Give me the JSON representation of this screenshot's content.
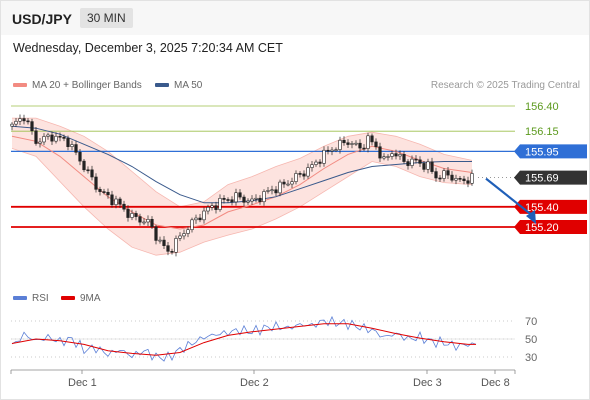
{
  "header": {
    "symbol": "USD/JPY",
    "timeframe": "30 MIN",
    "datetime": "Wednesday, December 3, 2025 7:20:34 AM CET"
  },
  "legend": {
    "bb_label": "MA 20 + Bollinger Bands",
    "ma50_label": "MA 50",
    "bb_color": "#f28b82",
    "ma50_color": "#3a5a8c",
    "copyright": "Research © 2025 Trading Central"
  },
  "rsi_legend": {
    "rsi_label": "RSI",
    "ma9_label": "9MA",
    "rsi_color": "#5b7fd6",
    "ma9_color": "#e00000"
  },
  "colors": {
    "resistance": "#9cbf4a",
    "resistance_text": "#5c9a1e",
    "support": "#e00000",
    "pivot": "#2f6fd6",
    "current": "#333333",
    "candle": "#222222",
    "bb_fill": "#fde0dc",
    "arrow": "#1f5fb8"
  },
  "chart_data": [
    {
      "type": "line",
      "title": "USD/JPY",
      "subtitle": "30 MIN",
      "x_labels": [
        "Dec 1",
        "Dec 2",
        "Dec 3",
        "Dec 8"
      ],
      "ylim": [
        154.85,
        156.55
      ],
      "levels": [
        {
          "value": 156.4,
          "label": "156.40",
          "kind": "resistance"
        },
        {
          "value": 156.15,
          "label": "156.15",
          "kind": "resistance"
        },
        {
          "value": 155.95,
          "label": "155.95",
          "kind": "pivot"
        },
        {
          "value": 155.69,
          "label": "155.69",
          "kind": "current"
        },
        {
          "value": 155.4,
          "label": "155.40",
          "kind": "support"
        },
        {
          "value": 155.2,
          "label": "155.20",
          "kind": "support"
        }
      ],
      "price_path": [
        [
          0,
          156.2
        ],
        [
          3,
          156.3
        ],
        [
          6,
          156.05
        ],
        [
          10,
          156.1
        ],
        [
          14,
          156.05
        ],
        [
          18,
          155.8
        ],
        [
          22,
          155.55
        ],
        [
          26,
          155.45
        ],
        [
          30,
          155.3
        ],
        [
          34,
          155.25
        ],
        [
          37,
          155.05
        ],
        [
          39,
          154.95
        ],
        [
          41,
          155.05
        ],
        [
          44,
          155.2
        ],
        [
          48,
          155.35
        ],
        [
          52,
          155.45
        ],
        [
          56,
          155.5
        ],
        [
          60,
          155.45
        ],
        [
          64,
          155.55
        ],
        [
          68,
          155.62
        ],
        [
          72,
          155.72
        ],
        [
          75,
          155.8
        ],
        [
          78,
          155.92
        ],
        [
          81,
          156.0
        ],
        [
          84,
          156.05
        ],
        [
          87,
          155.98
        ],
        [
          89,
          156.07
        ],
        [
          91,
          156.0
        ],
        [
          93,
          155.85
        ],
        [
          95,
          155.95
        ],
        [
          98,
          155.85
        ],
        [
          101,
          155.85
        ],
        [
          104,
          155.8
        ],
        [
          106,
          155.7
        ],
        [
          109,
          155.72
        ],
        [
          112,
          155.65
        ],
        [
          115,
          155.69
        ]
      ],
      "ma20": [
        [
          0,
          156.1
        ],
        [
          6,
          156.05
        ],
        [
          12,
          155.9
        ],
        [
          18,
          155.7
        ],
        [
          24,
          155.5
        ],
        [
          30,
          155.35
        ],
        [
          36,
          155.22
        ],
        [
          42,
          155.18
        ],
        [
          48,
          155.22
        ],
        [
          54,
          155.35
        ],
        [
          60,
          155.42
        ],
        [
          66,
          155.5
        ],
        [
          72,
          155.62
        ],
        [
          78,
          155.78
        ],
        [
          84,
          155.92
        ],
        [
          90,
          156.0
        ],
        [
          96,
          155.95
        ],
        [
          102,
          155.86
        ],
        [
          108,
          155.78
        ],
        [
          115,
          155.74
        ]
      ],
      "bb_upper": [
        [
          0,
          156.28
        ],
        [
          6,
          156.28
        ],
        [
          12,
          156.2
        ],
        [
          18,
          156.1
        ],
        [
          24,
          155.95
        ],
        [
          30,
          155.75
        ],
        [
          36,
          155.55
        ],
        [
          42,
          155.4
        ],
        [
          48,
          155.45
        ],
        [
          54,
          155.62
        ],
        [
          60,
          155.7
        ],
        [
          66,
          155.8
        ],
        [
          72,
          155.88
        ],
        [
          78,
          156.0
        ],
        [
          84,
          156.1
        ],
        [
          90,
          156.14
        ],
        [
          96,
          156.1
        ],
        [
          102,
          156.02
        ],
        [
          108,
          155.92
        ],
        [
          115,
          155.86
        ]
      ],
      "bb_lower": [
        [
          0,
          155.98
        ],
        [
          6,
          155.9
        ],
        [
          12,
          155.65
        ],
        [
          18,
          155.4
        ],
        [
          24,
          155.18
        ],
        [
          30,
          155.0
        ],
        [
          36,
          154.92
        ],
        [
          42,
          154.95
        ],
        [
          48,
          155.05
        ],
        [
          54,
          155.12
        ],
        [
          60,
          155.18
        ],
        [
          66,
          155.28
        ],
        [
          72,
          155.4
        ],
        [
          78,
          155.55
        ],
        [
          84,
          155.7
        ],
        [
          90,
          155.85
        ],
        [
          96,
          155.8
        ],
        [
          102,
          155.7
        ],
        [
          108,
          155.64
        ],
        [
          115,
          155.62
        ]
      ],
      "ma50": [
        [
          0,
          156.2
        ],
        [
          6,
          156.18
        ],
        [
          12,
          156.12
        ],
        [
          18,
          156.02
        ],
        [
          24,
          155.92
        ],
        [
          30,
          155.8
        ],
        [
          36,
          155.65
        ],
        [
          42,
          155.52
        ],
        [
          48,
          155.44
        ],
        [
          54,
          155.44
        ],
        [
          60,
          155.46
        ],
        [
          66,
          155.5
        ],
        [
          72,
          155.58
        ],
        [
          78,
          155.66
        ],
        [
          84,
          155.74
        ],
        [
          90,
          155.8
        ],
        [
          96,
          155.82
        ],
        [
          102,
          155.84
        ],
        [
          108,
          155.85
        ],
        [
          115,
          155.85
        ]
      ],
      "forecast_arrow": {
        "from": [
          118,
          155.68
        ],
        "to": [
          131,
          155.23
        ]
      }
    },
    {
      "type": "line",
      "title": "RSI",
      "ylim": [
        25,
        80
      ],
      "y_ticks": [
        70,
        50,
        30
      ],
      "rsi": [
        [
          0,
          42
        ],
        [
          3,
          55
        ],
        [
          6,
          48
        ],
        [
          9,
          52
        ],
        [
          12,
          47
        ],
        [
          15,
          50
        ],
        [
          18,
          38
        ],
        [
          21,
          40
        ],
        [
          24,
          33
        ],
        [
          27,
          38
        ],
        [
          30,
          31
        ],
        [
          33,
          37
        ],
        [
          36,
          30
        ],
        [
          39,
          29
        ],
        [
          42,
          38
        ],
        [
          45,
          45
        ],
        [
          48,
          52
        ],
        [
          51,
          55
        ],
        [
          54,
          57
        ],
        [
          57,
          60
        ],
        [
          60,
          58
        ],
        [
          63,
          62
        ],
        [
          66,
          64
        ],
        [
          69,
          62
        ],
        [
          72,
          66
        ],
        [
          75,
          65
        ],
        [
          78,
          70
        ],
        [
          81,
          68
        ],
        [
          84,
          67
        ],
        [
          87,
          63
        ],
        [
          90,
          60
        ],
        [
          93,
          52
        ],
        [
          96,
          56
        ],
        [
          99,
          50
        ],
        [
          102,
          52
        ],
        [
          105,
          47
        ],
        [
          108,
          46
        ],
        [
          111,
          42
        ],
        [
          114,
          44
        ],
        [
          116,
          44
        ]
      ],
      "ma9": [
        [
          0,
          45
        ],
        [
          6,
          50
        ],
        [
          12,
          48
        ],
        [
          18,
          44
        ],
        [
          24,
          37
        ],
        [
          30,
          34
        ],
        [
          36,
          32
        ],
        [
          42,
          35
        ],
        [
          48,
          46
        ],
        [
          54,
          54
        ],
        [
          60,
          58
        ],
        [
          66,
          61
        ],
        [
          72,
          64
        ],
        [
          78,
          67
        ],
        [
          84,
          67
        ],
        [
          90,
          62
        ],
        [
          96,
          56
        ],
        [
          102,
          51
        ],
        [
          108,
          47
        ],
        [
          114,
          44
        ],
        [
          116,
          44
        ]
      ]
    }
  ]
}
